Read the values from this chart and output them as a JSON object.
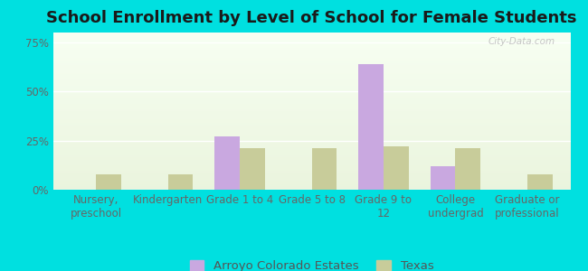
{
  "title": "School Enrollment by Level of School for Female Students",
  "categories": [
    "Nursery,\npreschool",
    "Kindergarten",
    "Grade 1 to 4",
    "Grade 5 to 8",
    "Grade 9 to\n12",
    "College\nundergrad",
    "Graduate or\nprofessional"
  ],
  "arroyo_values": [
    0,
    0,
    27,
    0,
    64,
    12,
    0
  ],
  "texas_values": [
    8,
    8,
    21,
    21,
    22,
    21,
    8
  ],
  "arroyo_color": "#c9a8e0",
  "texas_color": "#c8cc9a",
  "background_color": "#00e0e0",
  "ylim": [
    0,
    80
  ],
  "yticks": [
    0,
    25,
    50,
    75
  ],
  "ytick_labels": [
    "0%",
    "25%",
    "50%",
    "75%"
  ],
  "legend_arroyo": "Arroyo Colorado Estates",
  "legend_texas": "Texas",
  "title_fontsize": 13,
  "tick_fontsize": 8.5,
  "legend_fontsize": 9.5,
  "bar_width": 0.35,
  "n_categories": 7,
  "xlim_left": -0.6,
  "xlim_right": 6.6
}
